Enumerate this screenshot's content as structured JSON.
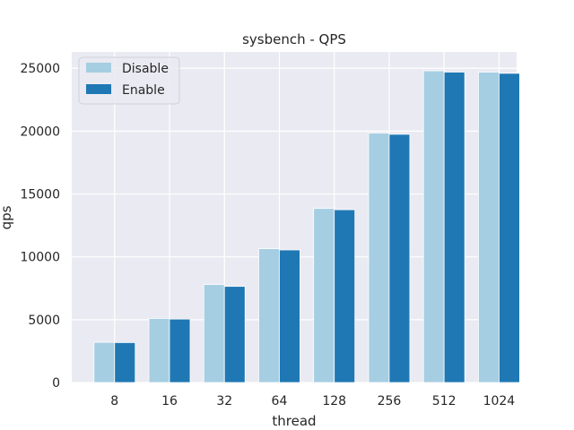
{
  "chart_data": {
    "type": "bar",
    "title": "sysbench - QPS",
    "xlabel": "thread",
    "ylabel": "qps",
    "categories": [
      "8",
      "16",
      "32",
      "64",
      "128",
      "256",
      "512",
      "1024"
    ],
    "series": [
      {
        "name": "Disable",
        "color": "#a6cee3",
        "values": [
          3200,
          5100,
          7800,
          10650,
          13850,
          19850,
          24800,
          24700
        ]
      },
      {
        "name": "Enable",
        "color": "#1f78b4",
        "values": [
          3180,
          5050,
          7650,
          10550,
          13750,
          19750,
          24700,
          24600
        ]
      }
    ],
    "ylim": [
      0,
      26300
    ],
    "yticks": [
      0,
      5000,
      10000,
      15000,
      20000,
      25000
    ],
    "grid": true,
    "legend_position": "top-left"
  }
}
